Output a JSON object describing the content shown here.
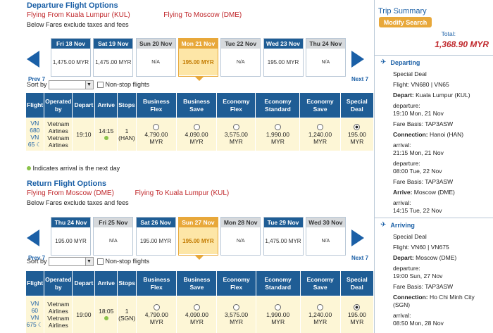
{
  "departure": {
    "title": "Departure Flight Options",
    "from_label": "Flying From",
    "from_city": "Kuala Lumpur (KUL)",
    "to_label": "Flying To",
    "to_city": "Moscow (DME)",
    "note": "Below Fares exclude taxes and fees",
    "prev": "Prev 7",
    "next": "Next 7",
    "days": [
      {
        "label": "Fri 18 Nov",
        "value": "1,475.00 MYR",
        "state": "avail"
      },
      {
        "label": "Sat 19 Nov",
        "value": "1,475.00 MYR",
        "state": "avail"
      },
      {
        "label": "Sun 20 Nov",
        "value": "N/A",
        "state": "na"
      },
      {
        "label": "Mon 21 Nov",
        "value": "195.00 MYR",
        "state": "sel"
      },
      {
        "label": "Tue 22 Nov",
        "value": "N/A",
        "state": "na"
      },
      {
        "label": "Wed 23 Nov",
        "value": "195.00 MYR",
        "state": "avail"
      },
      {
        "label": "Thu 24 Nov",
        "value": "N/A",
        "state": "na"
      }
    ],
    "sort_label": "Sort by",
    "nonstop": "Non-stop flights",
    "headers": [
      "Flight",
      "Operated by",
      "Depart",
      "Arrive",
      "Stops",
      "Business Flex",
      "Business Save",
      "Economy Flex",
      "Economy Standard",
      "Economy Save",
      "Special Deal"
    ],
    "row": {
      "flight": [
        "VN",
        "680",
        "VN",
        "65"
      ],
      "operated": [
        "Vietnam",
        "Airlines",
        "Vietnam",
        "Airlines"
      ],
      "depart": "19:10",
      "arrive": "14:15",
      "stops": [
        "1",
        "(HAN)"
      ],
      "fares": [
        "4,790.00",
        "4,090.00",
        "3,575.00",
        "1,990.00",
        "1,240.00",
        "195.00"
      ],
      "currency": "MYR"
    }
  },
  "legend": "Indicates arrival is the next day",
  "return": {
    "title": "Return Flight Options",
    "from_label": "Flying From",
    "from_city": "Moscow (DME)",
    "to_label": "Flying To",
    "to_city": "Kuala Lumpur (KUL)",
    "note": "Below Fares exclude taxes and fees",
    "prev": "Prev 7",
    "next": "Next 7",
    "days": [
      {
        "label": "Thu 24 Nov",
        "value": "195.00 MYR",
        "state": "avail"
      },
      {
        "label": "Fri 25 Nov",
        "value": "N/A",
        "state": "na"
      },
      {
        "label": "Sat 26 Nov",
        "value": "195.00 MYR",
        "state": "avail"
      },
      {
        "label": "Sun 27 Nov",
        "value": "195.00 MYR",
        "state": "sel"
      },
      {
        "label": "Mon 28 Nov",
        "value": "N/A",
        "state": "na"
      },
      {
        "label": "Tue 29 Nov",
        "value": "1,475.00 MYR",
        "state": "avail"
      },
      {
        "label": "Wed 30 Nov",
        "value": "N/A",
        "state": "na"
      }
    ],
    "sort_label": "Sort by",
    "nonstop": "Non-stop flights",
    "headers": [
      "Flight",
      "Operated by",
      "Depart",
      "Arrive",
      "Stops",
      "Business Flex",
      "Business Save",
      "Economy Flex",
      "Economy Standard",
      "Economy Save",
      "Special Deal"
    ],
    "row": {
      "flight": [
        "VN",
        "60",
        "VN",
        "675"
      ],
      "operated": [
        "Vietnam",
        "Airlines",
        "Vietnam",
        "Airlines"
      ],
      "depart": "19:00",
      "arrive": "18:05",
      "stops": [
        "1",
        "(SGN)"
      ],
      "fares": [
        "4,790.00",
        "4,090.00",
        "3,575.00",
        "1,990.00",
        "1,240.00",
        "195.00"
      ],
      "currency": "MYR"
    }
  },
  "summary": {
    "title": "Trip Summary",
    "modify": "Modify Search",
    "total_label": "Total:",
    "total_value": "1,368.90 MYR",
    "departing": {
      "heading": "Departing",
      "deal": "Special Deal",
      "flight": "Flight: VN680 | VN65",
      "depart_label": "Depart:",
      "depart_city": "Kuala Lumpur (KUL)",
      "departure_label": "departure:",
      "departure_time": "19:10 Mon, 21 Nov",
      "fare_basis": "Fare Basis: TAP3ASW",
      "connection_label": "Connection:",
      "connection_city": "Hanoi (HAN)",
      "arrival1_label": "arrival:",
      "arrival1_time": "21:15 Mon, 21 Nov",
      "departure2_label": "departure:",
      "departure2_time": "08:00 Tue, 22 Nov",
      "fare_basis2": "Fare Basis: TAP3ASW",
      "arrive_label": "Arrive:",
      "arrive_city": "Moscow (DME)",
      "arrival2_label": "arrival:",
      "arrival2_time": "14:15 Tue, 22 Nov"
    },
    "arriving": {
      "heading": "Arriving",
      "deal": "Special Deal",
      "flight": "Flight: VN60 | VN675",
      "depart_label": "Depart:",
      "depart_city": "Moscow (DME)",
      "departure_label": "departure:",
      "departure_time": "19:00 Sun, 27 Nov",
      "fare_basis": "Fare Basis: TAP3ASW",
      "connection_label": "Connection:",
      "connection_city": "Ho Chi Minh City (SGN)",
      "arrival_label": "arrival:",
      "arrival_time": "08:50 Mon, 28 Nov"
    }
  }
}
